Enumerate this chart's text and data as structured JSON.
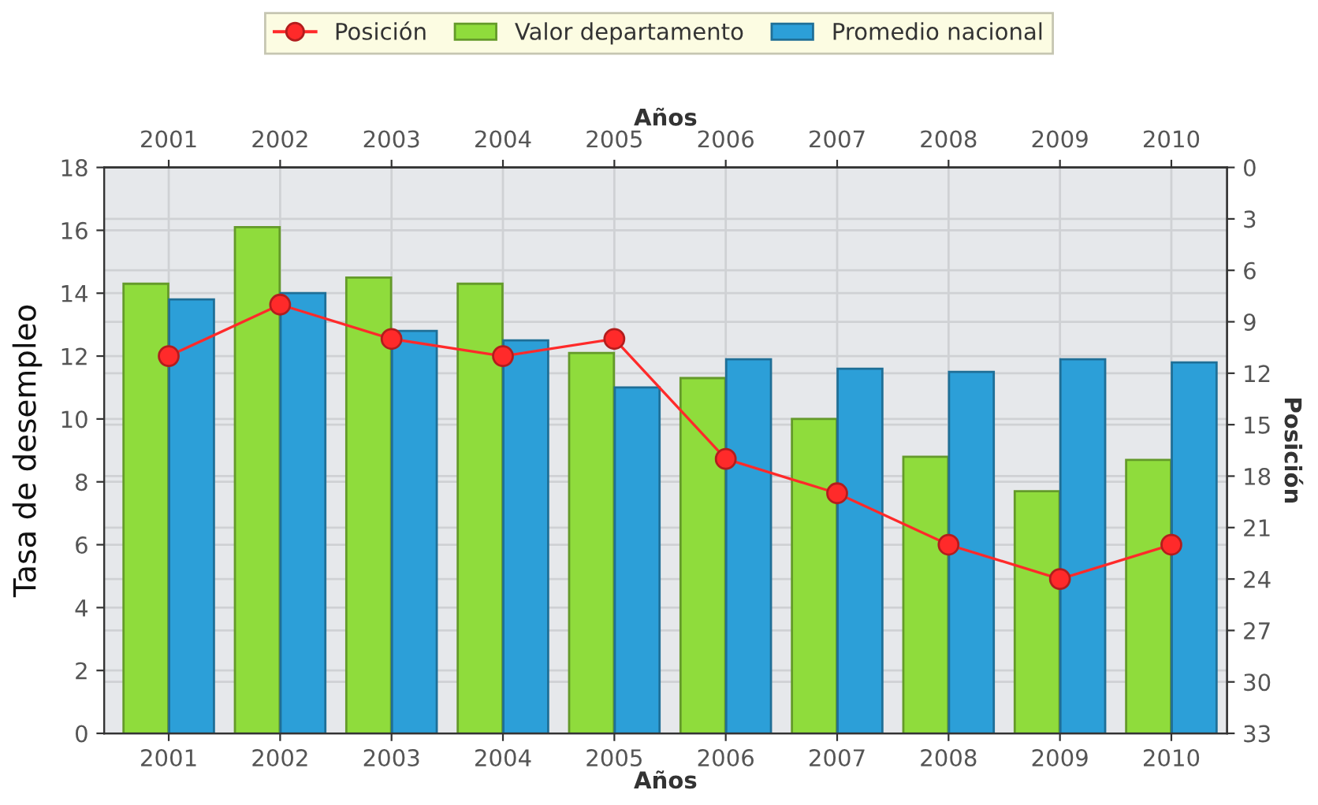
{
  "chart_data": {
    "type": "bar",
    "categories": [
      "2001",
      "2002",
      "2003",
      "2004",
      "2005",
      "2006",
      "2007",
      "2008",
      "2009",
      "2010"
    ],
    "xlabel": "Años",
    "x2label": "Años",
    "ylabel": "Tasa de desempleo",
    "y2label": "Posición",
    "ylim": [
      0,
      18
    ],
    "yticks": [
      0,
      2,
      4,
      6,
      8,
      10,
      12,
      14,
      16,
      18
    ],
    "y2lim": [
      33,
      0
    ],
    "y2ticks": [
      0,
      3,
      6,
      9,
      12,
      15,
      18,
      21,
      24,
      27,
      30,
      33
    ],
    "grid": true,
    "legend": "top",
    "marker": "circle",
    "series": [
      {
        "name": "Posición",
        "type": "line",
        "axis": "y2",
        "color": "#ff2a2a",
        "values": [
          11,
          8,
          10,
          11,
          10,
          17,
          19,
          22,
          24,
          22
        ]
      },
      {
        "name": "Valor departamento",
        "color": "#8fdc3c",
        "values": [
          14.3,
          16.1,
          14.5,
          14.3,
          12.1,
          11.3,
          10.0,
          8.8,
          7.7,
          8.7
        ]
      },
      {
        "name": "Promedio nacional",
        "color": "#2c9fd8",
        "values": [
          13.8,
          14.0,
          12.8,
          12.5,
          11.0,
          11.9,
          11.6,
          11.5,
          11.9,
          11.8
        ]
      }
    ]
  }
}
